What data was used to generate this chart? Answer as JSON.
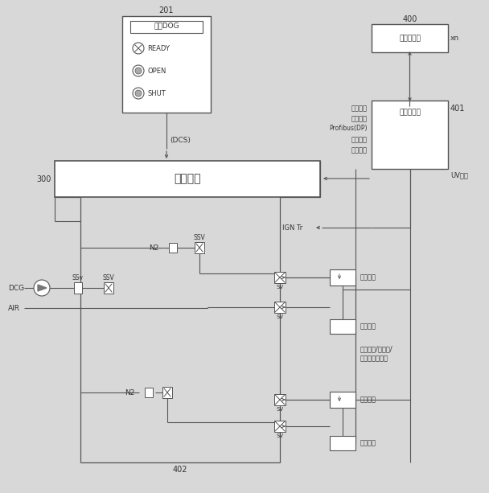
{
  "bg_color": "#d8d8d8",
  "line_color": "#555555",
  "box_color": "#ffffff",
  "text_color": "#333333",
  "fig_width": 6.08,
  "fig_height": 6.13,
  "dpi": 100,
  "labels": {
    "201": "201",
    "400": "400",
    "401": "401",
    "300": "300",
    "402": "402",
    "xn": "xn",
    "dcs_box_title": "点火DOG",
    "dcs_label": "(DCS)",
    "liansuokongzhi": "联锁控制",
    "ready": "READY",
    "open": "OPEN",
    "shut": "SHUT",
    "xianchang": "现场点火盒",
    "guanchapan": "点火观察盘",
    "dianhuocaozuo": "点火操作",
    "zhuohuo": "着火状态",
    "profibus": "Profibus(DP)",
    "liansuo": "联锁满足",
    "yunxu": "允许操作",
    "ign_tr": "IGN Tr",
    "uv": "UV检测",
    "n2_1": "N2",
    "n2_2": "N2",
    "ssv_top": "SSV",
    "ssv_left1": "SSV",
    "ssv_left2": "SSv",
    "sv": "SV",
    "dcg": "DCG",
    "air": "AIR",
    "dianhuo1": "点火烧嘴",
    "dianhuo2": "点火烧嘴",
    "dianhuo3": "点火烧嘴",
    "dianhuo4": "点火烧嘴",
    "quyure": "去预热段/直接段/",
    "fushe": "辐射段点火烧嘴"
  }
}
